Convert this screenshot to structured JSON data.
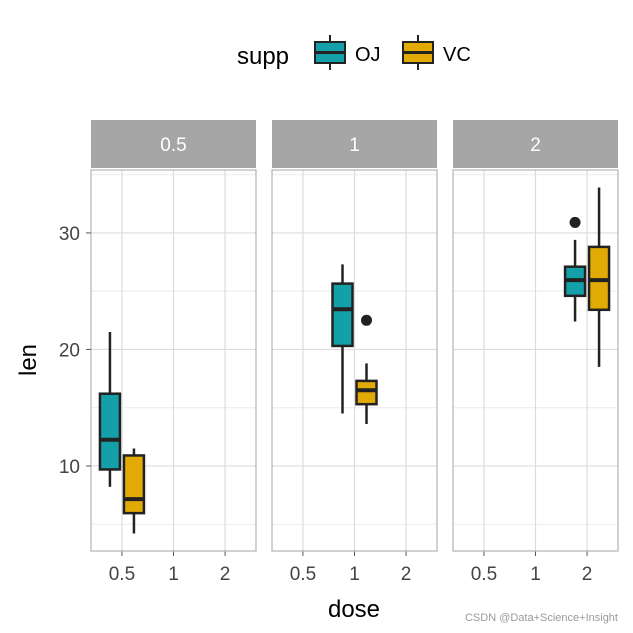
{
  "chart_data": {
    "type": "boxplot",
    "xlabel": "dose",
    "ylabel": "len",
    "ylim": [
      2.7,
      35.4
    ],
    "yticks": [
      10,
      20,
      30
    ],
    "categories": [
      "0.5",
      "1",
      "2"
    ],
    "facets": [
      "0.5",
      "1",
      "2"
    ],
    "legend": {
      "title": "supp",
      "position": "top",
      "entries": [
        "OJ",
        "VC"
      ]
    },
    "colors": {
      "OJ": "#14A0A9",
      "VC": "#E2AA05"
    },
    "grid": true,
    "boxes": [
      {
        "facet": "0.5",
        "x": "0.5",
        "supp": "OJ",
        "min": 8.2,
        "q1": 9.7,
        "median": 12.25,
        "q3": 16.2,
        "max": 21.5,
        "outliers": []
      },
      {
        "facet": "0.5",
        "x": "0.5",
        "supp": "VC",
        "min": 4.2,
        "q1": 5.95,
        "median": 7.15,
        "q3": 10.9,
        "max": 11.5,
        "outliers": []
      },
      {
        "facet": "1",
        "x": "1",
        "supp": "OJ",
        "min": 14.5,
        "q1": 20.3,
        "median": 23.45,
        "q3": 25.65,
        "max": 27.3,
        "outliers": []
      },
      {
        "facet": "1",
        "x": "1",
        "supp": "VC",
        "min": 13.6,
        "q1": 15.3,
        "median": 16.5,
        "q3": 17.3,
        "max": 18.8,
        "outliers": [
          22.5
        ]
      },
      {
        "facet": "2",
        "x": "2",
        "supp": "OJ",
        "min": 22.4,
        "q1": 24.6,
        "median": 25.95,
        "q3": 27.1,
        "max": 29.4,
        "outliers": [
          30.9
        ]
      },
      {
        "facet": "2",
        "x": "2",
        "supp": "VC",
        "min": 18.5,
        "q1": 23.4,
        "median": 25.95,
        "q3": 28.8,
        "max": 33.9,
        "outliers": []
      }
    ]
  },
  "watermark": "CSDN @Data+Science+Insight"
}
